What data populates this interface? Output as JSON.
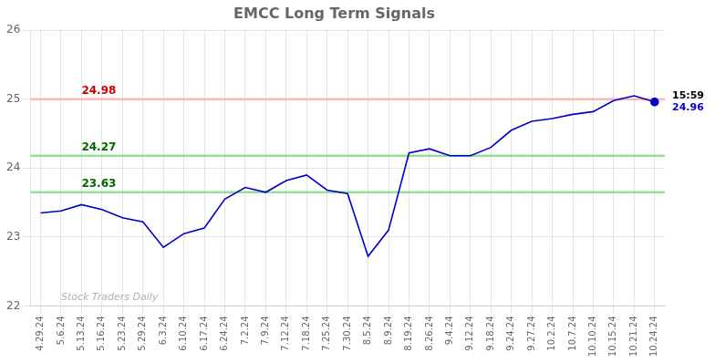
{
  "chart_data": {
    "type": "line",
    "title": "EMCC Long Term Signals",
    "categories": [
      "4.29.24",
      "5.6.24",
      "5.13.24",
      "5.16.24",
      "5.23.24",
      "5.29.24",
      "6.3.24",
      "6.10.24",
      "6.17.24",
      "6.24.24",
      "7.2.24",
      "7.9.24",
      "7.12.24",
      "7.18.24",
      "7.25.24",
      "7.30.24",
      "8.5.24",
      "8.9.24",
      "8.19.24",
      "8.26.24",
      "9.4.24",
      "9.12.24",
      "9.18.24",
      "9.24.24",
      "9.27.24",
      "10.2.24",
      "10.7.24",
      "10.10.24",
      "10.15.24",
      "10.21.24",
      "10.24.24"
    ],
    "values": [
      23.35,
      23.38,
      23.47,
      23.4,
      23.28,
      23.22,
      22.85,
      23.05,
      23.13,
      23.55,
      23.72,
      23.65,
      23.82,
      23.9,
      23.68,
      23.63,
      22.72,
      23.1,
      24.22,
      24.28,
      24.18,
      24.18,
      24.3,
      24.55,
      24.68,
      24.72,
      24.78,
      24.82,
      24.98,
      25.05,
      24.96
    ],
    "color": "#0000cc",
    "ylim": [
      22.0,
      26.0
    ],
    "yticks": [
      22,
      23,
      24,
      25,
      26
    ],
    "grid": true,
    "hlines": [
      {
        "value": 25.0,
        "color": "#ffb6b6",
        "label": "24.98",
        "label_color": "#cc0000"
      },
      {
        "value": 24.18,
        "color": "#99dd99",
        "label": "24.27",
        "label_color": "#006600"
      },
      {
        "value": 23.65,
        "color": "#99dd99",
        "label": "23.63",
        "label_color": "#006600"
      }
    ],
    "end_labels": [
      {
        "text": "15:59",
        "color": "#000000"
      },
      {
        "text": "24.96",
        "color": "#0000cc"
      }
    ],
    "watermark": {
      "text": "Stock Traders Daily",
      "color": "#b0b0b0"
    }
  }
}
